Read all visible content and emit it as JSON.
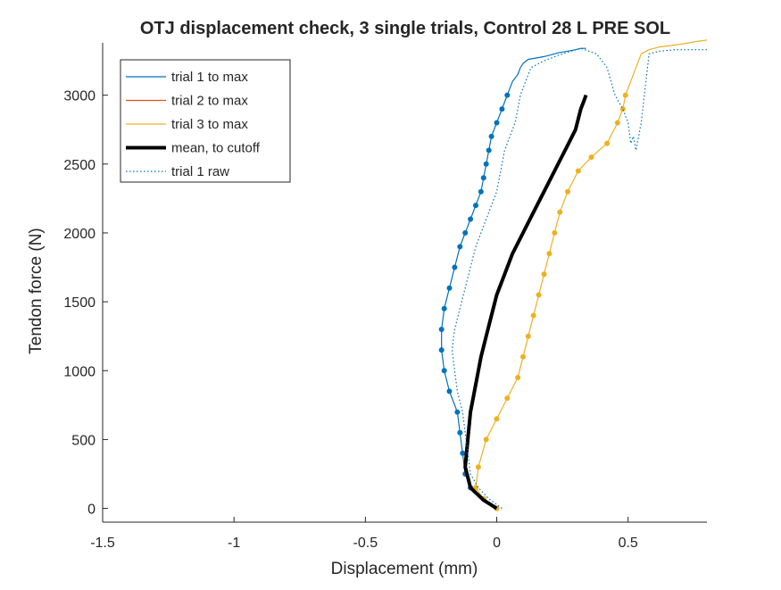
{
  "chart_data": {
    "type": "line",
    "title": "OTJ displacement check, 3 single trials, Control 28 L PRE SOL",
    "xlabel": "Displacement (mm)",
    "ylabel": "Tendon force (N)",
    "xlim": [
      -1.5,
      0.8
    ],
    "ylim": [
      -100,
      3380
    ],
    "xticks": [
      -1.5,
      -1,
      -0.5,
      0,
      0.5
    ],
    "xtick_labels": [
      "-1.5",
      "-1",
      "-0.5",
      "0",
      "0.5"
    ],
    "yticks": [
      0,
      500,
      1000,
      1500,
      2000,
      2500,
      3000
    ],
    "ytick_labels": [
      "0",
      "500",
      "1000",
      "1500",
      "2000",
      "2500",
      "3000"
    ],
    "grid": false,
    "legend_position": "top-left",
    "colors": {
      "trial1": "#0072BD",
      "trial2": "#D95319",
      "trial3": "#EDB120",
      "mean": "#000000",
      "axes": "#262626"
    },
    "series": [
      {
        "name": "trial 1 to max",
        "color": "#0072BD",
        "style": "solid",
        "x": [
          0.0,
          -0.05,
          -0.1,
          -0.12,
          -0.13,
          -0.14,
          -0.15,
          -0.18,
          -0.2,
          -0.21,
          -0.21,
          -0.2,
          -0.18,
          -0.16,
          -0.14,
          -0.12,
          -0.1,
          -0.08,
          -0.06,
          -0.05,
          -0.04,
          -0.03,
          -0.02,
          0.0,
          0.02,
          0.04,
          0.06,
          0.08,
          0.09,
          0.1,
          0.12,
          0.15,
          0.18,
          0.2,
          0.22,
          0.24,
          0.27,
          0.3,
          0.32,
          0.34
        ],
        "y": [
          0,
          70,
          150,
          250,
          400,
          550,
          700,
          850,
          1000,
          1150,
          1300,
          1450,
          1600,
          1750,
          1900,
          2000,
          2100,
          2200,
          2300,
          2400,
          2500,
          2600,
          2700,
          2800,
          2900,
          3000,
          3100,
          3150,
          3200,
          3230,
          3260,
          3270,
          3280,
          3290,
          3300,
          3310,
          3320,
          3330,
          3340,
          3340
        ]
      },
      {
        "name": "trial 2 to max",
        "color": "#D95319",
        "style": "solid",
        "x": [],
        "y": []
      },
      {
        "name": "trial 3 to max",
        "color": "#EDB120",
        "style": "solid",
        "x": [
          0.0,
          -0.05,
          -0.08,
          -0.07,
          -0.04,
          0.0,
          0.04,
          0.08,
          0.1,
          0.12,
          0.14,
          0.16,
          0.18,
          0.2,
          0.22,
          0.24,
          0.27,
          0.31,
          0.36,
          0.42,
          0.46,
          0.48,
          0.49,
          0.51,
          0.53,
          0.55,
          0.56,
          0.58,
          0.62,
          0.66,
          0.7,
          0.73,
          0.76,
          0.8
        ],
        "y": [
          0,
          70,
          150,
          300,
          500,
          650,
          800,
          950,
          1100,
          1250,
          1400,
          1550,
          1700,
          1850,
          2000,
          2150,
          2300,
          2450,
          2550,
          2650,
          2800,
          2900,
          3000,
          3100,
          3200,
          3300,
          3310,
          3330,
          3350,
          3360,
          3370,
          3380,
          3390,
          3400
        ]
      },
      {
        "name": "mean, to cutoff",
        "color": "#000000",
        "style": "thick",
        "x": [
          0.0,
          -0.05,
          -0.1,
          -0.12,
          -0.11,
          -0.1,
          -0.08,
          -0.06,
          -0.04,
          -0.02,
          0.0,
          0.03,
          0.06,
          0.1,
          0.14,
          0.18,
          0.22,
          0.26,
          0.3,
          0.32,
          0.33,
          0.34
        ],
        "y": [
          0,
          60,
          150,
          300,
          500,
          700,
          900,
          1100,
          1250,
          1400,
          1550,
          1700,
          1850,
          2000,
          2150,
          2300,
          2450,
          2600,
          2750,
          2900,
          2950,
          3000
        ]
      },
      {
        "name": "trial 1 raw",
        "color": "#0072BD",
        "style": "dotted",
        "x": [
          0.02,
          -0.03,
          -0.07,
          -0.1,
          -0.11,
          -0.12,
          -0.13,
          -0.15,
          -0.16,
          -0.17,
          -0.16,
          -0.14,
          -0.12,
          -0.1,
          -0.08,
          -0.06,
          -0.04,
          -0.02,
          0.0,
          0.01,
          0.02,
          0.03,
          0.05,
          0.07,
          0.08,
          0.09,
          0.11,
          0.13,
          0.18,
          0.25,
          0.32,
          0.38,
          0.42,
          0.45,
          0.48,
          0.5,
          0.51,
          0.52,
          0.53,
          0.55,
          0.58,
          0.62,
          0.68,
          0.75,
          0.8
        ],
        "y": [
          0,
          70,
          150,
          250,
          400,
          550,
          700,
          850,
          1000,
          1150,
          1300,
          1450,
          1600,
          1750,
          1900,
          2000,
          2100,
          2200,
          2300,
          2400,
          2500,
          2600,
          2700,
          2800,
          2900,
          3000,
          3100,
          3200,
          3250,
          3300,
          3340,
          3300,
          3200,
          3000,
          2900,
          2800,
          2650,
          2700,
          2600,
          2800,
          3300,
          3320,
          3330,
          3330,
          3330
        ]
      }
    ]
  }
}
